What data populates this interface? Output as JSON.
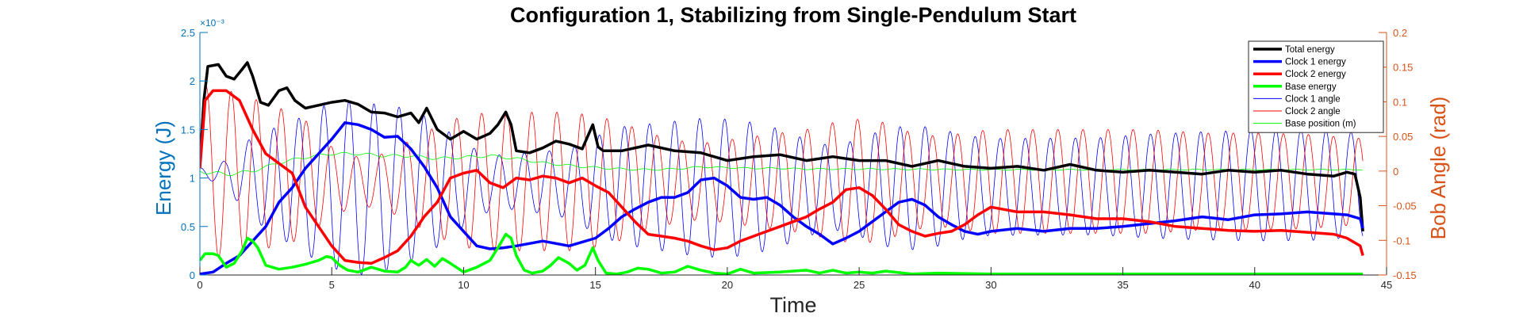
{
  "chart_data": {
    "type": "line",
    "title": "Configuration 1, Stabilizing from Single-Pendulum Start",
    "xlabel": "Time",
    "ylabel_left": "Energy (J)",
    "ylabel_right": "Bob Angle (rad)",
    "left_axis_exponent": "×10⁻³",
    "xlim": [
      0,
      45
    ],
    "ylim_left": [
      0,
      0.0025
    ],
    "ylim_right": [
      -0.15,
      0.2
    ],
    "x_ticks": [
      0,
      5,
      10,
      15,
      20,
      25,
      30,
      35,
      40,
      45
    ],
    "x_tick_labels": [
      "0",
      "5",
      "10",
      "15",
      "20",
      "25",
      "30",
      "35",
      "40",
      "45"
    ],
    "y_left_ticks": [
      0,
      0.0005,
      0.001,
      0.0015,
      0.002,
      0.0025
    ],
    "y_left_tick_labels": [
      "0",
      "0.5",
      "1",
      "1.5",
      "2",
      "2.5"
    ],
    "y_right_ticks": [
      -0.15,
      -0.1,
      -0.05,
      0,
      0.05,
      0.1,
      0.15,
      0.2
    ],
    "y_right_tick_labels": [
      "-0.15",
      "-0.1",
      "-0.05",
      "0",
      "0.05",
      "0.1",
      "0.15",
      "0.2"
    ],
    "legend_position": "top-right",
    "grid": false,
    "colors": {
      "left_axis": "#0072BD",
      "right_axis": "#D95319"
    },
    "series": [
      {
        "name": "Total energy",
        "axis": "left",
        "color": "#000000",
        "width": 3.5,
        "x": [
          0,
          0.15,
          0.3,
          0.7,
          1.0,
          1.3,
          1.6,
          1.8,
          2.0,
          2.3,
          2.6,
          3.0,
          3.3,
          3.6,
          4.0,
          4.5,
          5.0,
          5.5,
          6.0,
          6.5,
          7.0,
          7.5,
          8.0,
          8.3,
          8.6,
          9.0,
          9.5,
          10.0,
          10.5,
          11.0,
          11.3,
          11.6,
          11.8,
          12.0,
          12.5,
          13.0,
          13.5,
          14.0,
          14.5,
          14.9,
          15.1,
          15.3,
          16.0,
          17.0,
          18.0,
          19.0,
          20.0,
          21.0,
          22.0,
          23.0,
          24.0,
          25.0,
          26.0,
          27.0,
          28.0,
          29.0,
          30.0,
          31.0,
          32.0,
          33.0,
          34.0,
          35.0,
          36.0,
          37.0,
          38.0,
          39.0,
          40.0,
          41.0,
          42.0,
          43.0,
          43.5,
          43.8,
          44.0,
          44.1
        ],
        "y": [
          0.00115,
          0.0018,
          0.00215,
          0.00217,
          0.00205,
          0.00202,
          0.00212,
          0.00219,
          0.00205,
          0.00178,
          0.00175,
          0.0019,
          0.00193,
          0.0018,
          0.00172,
          0.00175,
          0.00178,
          0.0018,
          0.00176,
          0.00168,
          0.00167,
          0.00163,
          0.00167,
          0.00157,
          0.00172,
          0.0015,
          0.0014,
          0.00148,
          0.0014,
          0.00146,
          0.00155,
          0.00168,
          0.00155,
          0.00128,
          0.00126,
          0.00131,
          0.00138,
          0.00135,
          0.0013,
          0.00155,
          0.00132,
          0.00128,
          0.00128,
          0.00134,
          0.00128,
          0.00126,
          0.00118,
          0.00122,
          0.00124,
          0.00118,
          0.00122,
          0.00118,
          0.00118,
          0.00112,
          0.00118,
          0.00112,
          0.0011,
          0.00112,
          0.00108,
          0.00114,
          0.00108,
          0.00106,
          0.00108,
          0.00106,
          0.00104,
          0.00108,
          0.00106,
          0.00108,
          0.00104,
          0.00102,
          0.00106,
          0.00104,
          0.0008,
          0.00045
        ]
      },
      {
        "name": "Clock 1 energy",
        "axis": "left",
        "color": "#0000FF",
        "width": 3.5,
        "x": [
          0,
          0.5,
          1.0,
          1.5,
          2.0,
          2.5,
          3.0,
          3.5,
          4.0,
          4.5,
          5.0,
          5.5,
          6.0,
          6.5,
          7.0,
          7.5,
          8.0,
          8.5,
          9.0,
          9.5,
          10.0,
          10.5,
          11.0,
          11.5,
          12.0,
          13.0,
          14.0,
          15.0,
          15.5,
          16.0,
          16.5,
          17.0,
          17.5,
          18.0,
          18.5,
          19.0,
          19.5,
          20.0,
          20.5,
          21.0,
          21.5,
          22.0,
          22.5,
          23.0,
          23.5,
          24.0,
          24.5,
          25.0,
          25.5,
          26.0,
          26.5,
          27.0,
          27.5,
          28.0,
          28.5,
          29.0,
          29.5,
          30.0,
          31.0,
          32.0,
          33.0,
          34.0,
          35.0,
          36.0,
          37.0,
          38.0,
          39.0,
          40.0,
          41.0,
          42.0,
          43.0,
          43.5,
          44.0,
          44.1
        ],
        "y": [
          1e-05,
          3e-05,
          0.00012,
          0.0002,
          0.00035,
          0.0005,
          0.00075,
          0.0009,
          0.0011,
          0.00125,
          0.0014,
          0.00157,
          0.00155,
          0.0015,
          0.00142,
          0.00143,
          0.0013,
          0.00112,
          0.0009,
          0.0006,
          0.00045,
          0.0003,
          0.00027,
          0.00028,
          0.0003,
          0.00035,
          0.0003,
          0.00038,
          0.00048,
          0.0006,
          0.00068,
          0.00075,
          0.0008,
          0.0008,
          0.00085,
          0.00098,
          0.001,
          0.00092,
          0.0008,
          0.00078,
          0.0008,
          0.00072,
          0.0006,
          0.0005,
          0.00042,
          0.00032,
          0.00038,
          0.00045,
          0.00055,
          0.00065,
          0.00075,
          0.00078,
          0.00072,
          0.0006,
          0.00052,
          0.00045,
          0.00042,
          0.00045,
          0.00048,
          0.00045,
          0.00048,
          0.00048,
          0.0005,
          0.00053,
          0.00056,
          0.0006,
          0.00057,
          0.00062,
          0.00063,
          0.00065,
          0.00063,
          0.00062,
          0.00058,
          0.00048
        ]
      },
      {
        "name": "Clock 2 energy",
        "axis": "left",
        "color": "#FF0000",
        "width": 3.5,
        "x": [
          0,
          0.2,
          0.5,
          1.0,
          1.5,
          2.0,
          2.5,
          3.0,
          3.5,
          4.0,
          4.5,
          5.0,
          5.5,
          6.0,
          6.5,
          7.0,
          7.5,
          8.0,
          8.5,
          9.0,
          9.5,
          10.0,
          10.5,
          11.0,
          11.5,
          12.0,
          12.5,
          13.0,
          13.5,
          14.0,
          14.5,
          15.0,
          15.5,
          16.0,
          16.5,
          17.0,
          17.5,
          18.0,
          18.5,
          19.0,
          19.5,
          20.0,
          20.5,
          21.0,
          21.5,
          22.0,
          22.5,
          23.0,
          23.5,
          24.0,
          24.5,
          25.0,
          25.5,
          26.0,
          26.5,
          27.0,
          27.5,
          28.0,
          28.5,
          29.0,
          29.5,
          30.0,
          31.0,
          32.0,
          33.0,
          34.0,
          35.0,
          36.0,
          37.0,
          38.0,
          39.0,
          40.0,
          41.0,
          42.0,
          43.0,
          43.5,
          44.0,
          44.1
        ],
        "y": [
          0.0011,
          0.0018,
          0.0019,
          0.0019,
          0.0018,
          0.0015,
          0.00125,
          0.00115,
          0.00105,
          0.0007,
          0.0005,
          0.0003,
          0.00015,
          0.00013,
          0.00012,
          0.00018,
          0.00025,
          0.0004,
          0.0006,
          0.00075,
          0.001,
          0.00105,
          0.00108,
          0.00095,
          0.0009,
          0.001,
          0.00098,
          0.00102,
          0.001,
          0.00095,
          0.001,
          0.00092,
          0.00085,
          0.0007,
          0.00055,
          0.00042,
          0.0004,
          0.00038,
          0.00035,
          0.0003,
          0.00026,
          0.00028,
          0.00035,
          0.0004,
          0.00045,
          0.0005,
          0.00055,
          0.0006,
          0.00068,
          0.00075,
          0.00088,
          0.0009,
          0.00082,
          0.00068,
          0.00052,
          0.00045,
          0.0004,
          0.00043,
          0.00045,
          0.00052,
          0.00062,
          0.0007,
          0.00065,
          0.00065,
          0.00062,
          0.00058,
          0.00058,
          0.00055,
          0.0005,
          0.00048,
          0.00046,
          0.00045,
          0.00046,
          0.00044,
          0.00042,
          0.00038,
          0.0003,
          0.0002
        ]
      },
      {
        "name": "Base energy",
        "axis": "left",
        "color": "#00FF00",
        "width": 3.5,
        "x": [
          0,
          0.2,
          0.5,
          0.7,
          1.0,
          1.3,
          1.6,
          1.8,
          2.0,
          2.2,
          2.5,
          3.0,
          3.5,
          4.0,
          4.5,
          4.8,
          5.0,
          5.3,
          5.6,
          6.0,
          6.5,
          7.0,
          7.5,
          7.8,
          8.0,
          8.3,
          8.6,
          8.9,
          9.2,
          9.5,
          10.0,
          10.5,
          11.0,
          11.3,
          11.6,
          11.8,
          12.0,
          12.3,
          12.6,
          13.0,
          13.3,
          13.6,
          14.0,
          14.3,
          14.6,
          14.9,
          15.1,
          15.4,
          15.8,
          16.2,
          16.6,
          17.0,
          17.5,
          18.0,
          18.5,
          19.0,
          19.5,
          20.0,
          20.5,
          21.0,
          22.0,
          23.0,
          23.5,
          24.0,
          24.5,
          25.0,
          25.5,
          26.0,
          27.0,
          28.0,
          30.0,
          35.0,
          40.0,
          44.1
        ],
        "y": [
          0.00015,
          0.00022,
          0.00022,
          0.0002,
          8e-05,
          0.00012,
          0.00025,
          0.00038,
          0.00035,
          0.00028,
          0.0001,
          6e-05,
          8e-05,
          0.00011,
          0.00015,
          0.00019,
          0.00018,
          0.0001,
          5e-05,
          3e-05,
          8e-05,
          4e-05,
          3e-05,
          8e-05,
          0.00015,
          0.0001,
          0.00016,
          9e-05,
          0.00017,
          0.00012,
          3e-05,
          8e-05,
          0.00015,
          0.00028,
          0.00042,
          0.00038,
          0.0002,
          5e-05,
          2e-05,
          4e-05,
          0.0001,
          0.00018,
          0.00012,
          5e-05,
          0.0001,
          0.00028,
          0.00015,
          2e-05,
          1e-05,
          3e-05,
          7e-05,
          6e-05,
          2e-05,
          3e-05,
          9e-05,
          5e-05,
          2e-05,
          1e-05,
          6e-05,
          2e-05,
          3e-05,
          5e-05,
          2e-05,
          5e-05,
          2e-05,
          3e-05,
          2e-05,
          4e-05,
          1e-05,
          2e-05,
          1e-05,
          1e-05,
          1e-05,
          1e-05
        ]
      },
      {
        "name": "Clock 1 angle",
        "axis": "right",
        "color": "#0000FF",
        "width": 0.8,
        "oscillation": {
          "period": 0.95,
          "phase0": 0.3,
          "t_start": 0,
          "t_end": 44.1,
          "amp_t": [
            0,
            0.3,
            1.0,
            1.5,
            2.0,
            3.0,
            4.0,
            5.0,
            6.0,
            7.0,
            8.0,
            9.0,
            10.0,
            11.0,
            12.0,
            13.0,
            14.0,
            15.0,
            16.0,
            17.0,
            18.0,
            19.0,
            20.0,
            21.0,
            22.0,
            23.0,
            24.0,
            25.0,
            26.0,
            27.0,
            28.0,
            29.0,
            30.0,
            32.0,
            34.0,
            36.0,
            38.0,
            40.0,
            42.0,
            44.1
          ],
          "amp": [
            0.005,
            0.01,
            0.02,
            0.04,
            0.06,
            0.08,
            0.1,
            0.12,
            0.125,
            0.12,
            0.11,
            0.09,
            0.06,
            0.04,
            0.04,
            0.045,
            0.05,
            0.07,
            0.085,
            0.09,
            0.095,
            0.1,
            0.1,
            0.095,
            0.085,
            0.07,
            0.06,
            0.07,
            0.085,
            0.09,
            0.085,
            0.075,
            0.07,
            0.07,
            0.07,
            0.075,
            0.078,
            0.08,
            0.08,
            0.075
          ],
          "offset_t": [
            0,
            1.0,
            2.0,
            3.0,
            4.0,
            5.0,
            6.0,
            7.0,
            8.0,
            10.0,
            12.0,
            15.0,
            20.0,
            44.1
          ],
          "offset": [
            0.0,
            -0.005,
            -0.01,
            -0.015,
            -0.02,
            -0.02,
            -0.025,
            -0.025,
            -0.02,
            -0.02,
            -0.015,
            -0.02,
            -0.025,
            -0.02
          ]
        }
      },
      {
        "name": "Clock 2 angle",
        "axis": "right",
        "color": "#FF0000",
        "width": 0.8,
        "oscillation": {
          "period": 0.95,
          "phase0": 0.0,
          "t_start": 0,
          "t_end": 44.1,
          "amp_t": [
            0,
            0.5,
            1.0,
            1.5,
            2.0,
            3.0,
            4.0,
            5.0,
            6.0,
            7.0,
            8.0,
            9.0,
            10.0,
            11.0,
            12.0,
            13.0,
            14.0,
            15.0,
            16.0,
            17.0,
            18.0,
            19.0,
            20.0,
            21.0,
            22.0,
            23.0,
            24.0,
            25.0,
            26.0,
            27.0,
            28.0,
            29.0,
            30.0,
            32.0,
            34.0,
            36.0,
            38.0,
            40.0,
            42.0,
            44.1
          ],
          "amp": [
            0.12,
            0.125,
            0.12,
            0.115,
            0.11,
            0.1,
            0.085,
            0.05,
            0.035,
            0.04,
            0.06,
            0.08,
            0.095,
            0.1,
            0.1,
            0.1,
            0.1,
            0.095,
            0.085,
            0.07,
            0.06,
            0.055,
            0.06,
            0.065,
            0.07,
            0.075,
            0.085,
            0.09,
            0.085,
            0.07,
            0.065,
            0.07,
            0.075,
            0.075,
            0.075,
            0.075,
            0.07,
            0.07,
            0.068,
            0.062
          ],
          "offset_t": [
            0,
            2.0,
            5.0,
            10.0,
            20.0,
            30.0,
            44.1
          ],
          "offset": [
            0.0,
            -0.005,
            -0.015,
            -0.015,
            -0.015,
            -0.015,
            -0.015
          ]
        }
      },
      {
        "name": "Base position (m)",
        "axis": "right",
        "color": "#00FF00",
        "width": 0.8,
        "oscillation": {
          "period": 0.95,
          "phase0": 0.5,
          "t_start": 0,
          "t_end": 44.1,
          "amp_t": [
            0,
            2.0,
            5.0,
            10.0,
            15.0,
            20.0,
            30.0,
            44.1
          ],
          "amp": [
            0.003,
            0.002,
            0.002,
            0.002,
            0.0015,
            0.001,
            0.0008,
            0.0006
          ],
          "offset_t": [
            0,
            1.0,
            2.0,
            3.0,
            4.0,
            5.0,
            6.0,
            7.0,
            8.0,
            9.0,
            10.0,
            11.0,
            12.0,
            13.0,
            14.0,
            15.0,
            16.0,
            17.0,
            18.0,
            19.0,
            20.0,
            21.0,
            22.0,
            23.0,
            24.0,
            25.0,
            30.0,
            35.0,
            40.0,
            44.1
          ],
          "offset": [
            0.0,
            -0.005,
            0.0,
            0.012,
            0.02,
            0.025,
            0.025,
            0.022,
            0.022,
            0.018,
            0.02,
            0.022,
            0.018,
            0.012,
            0.008,
            0.005,
            0.003,
            0.002,
            0.003,
            0.006,
            0.005,
            0.004,
            0.004,
            0.003,
            0.003,
            0.003,
            0.002,
            0.002,
            0.002,
            0.002
          ]
        }
      }
    ]
  }
}
